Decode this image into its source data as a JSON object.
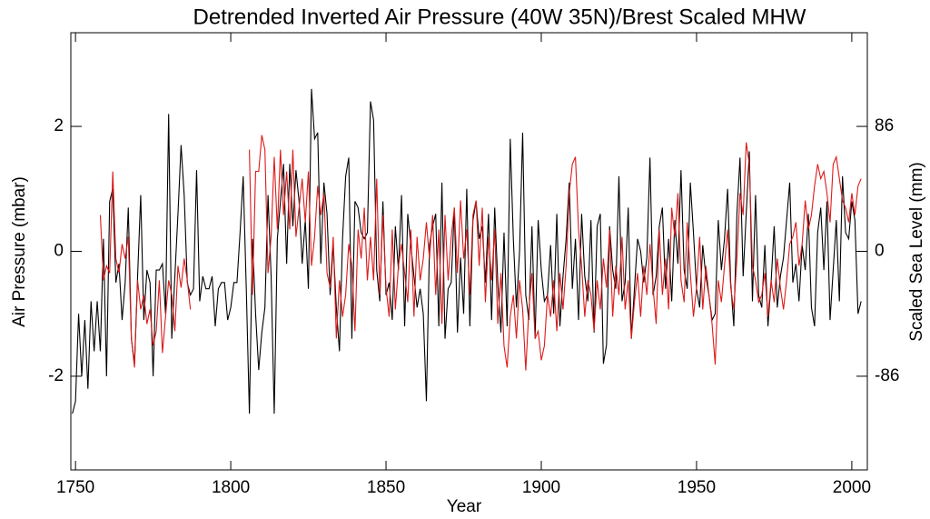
{
  "chart_data": {
    "type": "line",
    "title": "Detrended Inverted Air Pressure (40W 35N)/Brest Scaled MHW",
    "x_label": "Year",
    "y_label": "Air Pressure (mbar)",
    "y2_label": "Scaled Sea Level (mm)",
    "x": [
      1749,
      1750,
      1751,
      1752,
      1753,
      1754,
      1755,
      1756,
      1757,
      1758,
      1759,
      1760,
      1761,
      1762,
      1763,
      1764,
      1765,
      1766,
      1767,
      1768,
      1769,
      1770,
      1771,
      1772,
      1773,
      1774,
      1775,
      1776,
      1777,
      1778,
      1779,
      1780,
      1781,
      1782,
      1783,
      1784,
      1785,
      1786,
      1787,
      1788,
      1789,
      1790,
      1791,
      1792,
      1793,
      1794,
      1795,
      1796,
      1797,
      1798,
      1799,
      1800,
      1801,
      1802,
      1803,
      1804,
      1805,
      1806,
      1807,
      1808,
      1809,
      1810,
      1811,
      1812,
      1813,
      1814,
      1815,
      1816,
      1817,
      1818,
      1819,
      1820,
      1821,
      1822,
      1823,
      1824,
      1825,
      1826,
      1827,
      1828,
      1829,
      1830,
      1831,
      1832,
      1833,
      1834,
      1835,
      1836,
      1837,
      1838,
      1839,
      1840,
      1841,
      1842,
      1843,
      1844,
      1845,
      1846,
      1847,
      1848,
      1849,
      1850,
      1851,
      1852,
      1853,
      1854,
      1855,
      1856,
      1857,
      1858,
      1859,
      1860,
      1861,
      1862,
      1863,
      1864,
      1865,
      1866,
      1867,
      1868,
      1869,
      1870,
      1871,
      1872,
      1873,
      1874,
      1875,
      1876,
      1877,
      1878,
      1879,
      1880,
      1881,
      1882,
      1883,
      1884,
      1885,
      1886,
      1887,
      1888,
      1889,
      1890,
      1891,
      1892,
      1893,
      1894,
      1895,
      1896,
      1897,
      1898,
      1899,
      1900,
      1901,
      1902,
      1903,
      1904,
      1905,
      1906,
      1907,
      1908,
      1909,
      1910,
      1911,
      1912,
      1913,
      1914,
      1915,
      1916,
      1917,
      1918,
      1919,
      1920,
      1921,
      1922,
      1923,
      1924,
      1925,
      1926,
      1927,
      1928,
      1929,
      1930,
      1931,
      1932,
      1933,
      1934,
      1935,
      1936,
      1937,
      1938,
      1939,
      1940,
      1941,
      1942,
      1943,
      1944,
      1945,
      1946,
      1947,
      1948,
      1949,
      1950,
      1951,
      1952,
      1953,
      1954,
      1955,
      1956,
      1957,
      1958,
      1959,
      1960,
      1961,
      1962,
      1963,
      1964,
      1965,
      1966,
      1967,
      1968,
      1969,
      1970,
      1971,
      1972,
      1973,
      1974,
      1975,
      1976,
      1977,
      1978,
      1979,
      1980,
      1981,
      1982,
      1983,
      1984,
      1985,
      1986,
      1987,
      1988,
      1989,
      1990,
      1991,
      1992,
      1993,
      1994,
      1995,
      1996,
      1997,
      1998,
      1999,
      2000,
      2001,
      2002,
      2003
    ],
    "series": [
      {
        "name": "Detrended Inverted Air Pressure (40W 35N)",
        "color": "#000000",
        "values": [
          -2.6,
          -2.4,
          -1.0,
          -2.0,
          -1.1,
          -2.2,
          -0.8,
          -1.6,
          -0.8,
          -1.6,
          0.2,
          -2.0,
          0.8,
          1.0,
          -0.5,
          -0.2,
          -1.1,
          -0.5,
          0.7,
          -1.4,
          -1.8,
          -0.4,
          0.9,
          -1.1,
          -0.3,
          -0.5,
          -2.0,
          -0.3,
          -0.3,
          -0.2,
          -1.0,
          2.2,
          -1.4,
          -0.4,
          0.6,
          1.7,
          0.9,
          -0.5,
          -0.7,
          -0.6,
          1.3,
          -0.8,
          -0.4,
          -0.6,
          -0.6,
          -0.4,
          -1.2,
          -0.6,
          -0.5,
          -0.5,
          -1.1,
          -0.9,
          -0.5,
          -0.5,
          0.3,
          1.2,
          -0.6,
          -2.6,
          0.2,
          -1.0,
          -1.9,
          -1.3,
          -0.9,
          0.9,
          -0.4,
          -2.6,
          0.2,
          0.8,
          1.4,
          -0.2,
          1.4,
          0.4,
          1.3,
          0.8,
          -0.2,
          0.5,
          -0.6,
          2.6,
          1.8,
          1.9,
          -0.2,
          1.1,
          0.6,
          -0.7,
          0.1,
          -0.9,
          -1.6,
          0.2,
          1.2,
          1.5,
          -1.4,
          0.8,
          0.7,
          0.3,
          0.2,
          0.3,
          2.4,
          2.1,
          -0.3,
          -0.8,
          0.8,
          -0.7,
          -0.5,
          -1.1,
          0.4,
          -0.3,
          0.9,
          -1.2,
          0.6,
          0.1,
          -0.4,
          -0.9,
          -0.6,
          -1.0,
          -2.4,
          0.1,
          0.4,
          0.6,
          -1.2,
          1.1,
          -1.4,
          -0.6,
          -0.5,
          0.7,
          -1.3,
          -0.1,
          -1.0,
          1.0,
          -1.2,
          0.5,
          0.8,
          0.2,
          0.4,
          -0.5,
          0.6,
          -1.1,
          0.7,
          -0.5,
          -1.3,
          0.3,
          -1.2,
          1.8,
          0.2,
          -0.9,
          0.0,
          1.9,
          -0.7,
          -1.1,
          0.4,
          -1.4,
          0.5,
          -0.3,
          -0.8,
          -0.7,
          0.1,
          -1.0,
          0.6,
          -1.2,
          -0.4,
          0.2,
          1.1,
          -0.6,
          0.2,
          -1.1,
          0.6,
          -0.4,
          -0.8,
          0.5,
          -1.3,
          0.4,
          0.6,
          -1.8,
          -1.5,
          0.4,
          -0.3,
          -0.6,
          1.2,
          -0.8,
          -0.5,
          0.7,
          -1.4,
          -0.6,
          0.2,
          0.0,
          -0.5,
          -0.1,
          1.5,
          -0.7,
          -0.4,
          0.4,
          0.7,
          -0.6,
          0.2,
          -0.8,
          0.5,
          -0.2,
          1.3,
          -0.3,
          -0.6,
          1.1,
          0.3,
          -0.6,
          -0.9,
          0.1,
          -0.4,
          -0.7,
          -1.1,
          -1.0,
          0.5,
          -0.3,
          0.2,
          1.0,
          -0.5,
          -1.2,
          0.6,
          1.5,
          -0.4,
          0.6,
          1.6,
          -0.8,
          0.9,
          -0.7,
          -0.9,
          0.1,
          -1.2,
          -0.5,
          0.4,
          -0.9,
          -0.4,
          -0.1,
          0.5,
          1.1,
          -0.5,
          -0.2,
          -0.8,
          0.1,
          -0.3,
          0.6,
          -0.9,
          -1.2,
          0.3,
          0.7,
          -0.3,
          0.8,
          -1.1,
          -0.3,
          0.5,
          -0.8,
          1.2,
          0.3,
          0.2,
          0.8,
          0.5,
          -1.0,
          -0.8
        ]
      },
      {
        "name": "Brest Scaled MHW",
        "color": "#dd1a1a",
        "axis": "y2",
        "values": [
          null,
          null,
          null,
          null,
          null,
          null,
          null,
          null,
          null,
          25,
          -20,
          -10,
          -15,
          55,
          -5,
          -15,
          5,
          -5,
          10,
          -60,
          -80,
          -20,
          -40,
          -30,
          -50,
          -40,
          -65,
          -55,
          -20,
          -70,
          -45,
          -20,
          -30,
          -55,
          -10,
          -25,
          -5,
          -20,
          -40,
          null,
          null,
          null,
          null,
          null,
          null,
          null,
          null,
          null,
          null,
          null,
          null,
          null,
          null,
          null,
          null,
          null,
          null,
          70,
          -30,
          55,
          55,
          80,
          70,
          -15,
          10,
          65,
          15,
          70,
          25,
          55,
          15,
          70,
          10,
          30,
          50,
          20,
          55,
          -10,
          10,
          45,
          25,
          40,
          -15,
          -25,
          10,
          -60,
          -20,
          -45,
          -30,
          5,
          -10,
          -55,
          15,
          -5,
          30,
          -20,
          10,
          -20,
          50,
          -30,
          25,
          -25,
          -45,
          15,
          -40,
          -10,
          5,
          -15,
          -35,
          15,
          -45,
          10,
          -20,
          -5,
          20,
          -5,
          25,
          -30,
          15,
          -50,
          25,
          -20,
          10,
          30,
          -15,
          35,
          -5,
          15,
          -30,
          25,
          35,
          -10,
          30,
          -35,
          10,
          -20,
          15,
          -50,
          -15,
          -65,
          -80,
          -45,
          -30,
          -60,
          -20,
          -40,
          -82,
          -40,
          -15,
          -60,
          -55,
          -75,
          -65,
          -30,
          -45,
          -20,
          -55,
          -15,
          -40,
          -10,
          40,
          60,
          65,
          15,
          -10,
          -45,
          -20,
          -30,
          -55,
          -20,
          -40,
          -5,
          -25,
          15,
          -45,
          -10,
          -30,
          10,
          -40,
          -20,
          -60,
          -35,
          -15,
          -45,
          -10,
          -30,
          5,
          -25,
          -50,
          15,
          -30,
          -5,
          -40,
          30,
          10,
          40,
          -20,
          -35,
          20,
          -15,
          -45,
          -25,
          10,
          -40,
          -10,
          -30,
          -50,
          -78,
          -20,
          -35,
          -10,
          15,
          -25,
          -40,
          -5,
          40,
          25,
          75,
          60,
          -10,
          -20,
          -35,
          -30,
          -15,
          -45,
          -20,
          -35,
          -5,
          -25,
          -40,
          -20,
          5,
          10,
          20,
          -10,
          5,
          35,
          15,
          25,
          45,
          60,
          50,
          55,
          40,
          20,
          60,
          65,
          50,
          35,
          30,
          20,
          40,
          25,
          45,
          50
        ]
      }
    ],
    "xlim": [
      1748.5,
      2005
    ],
    "xticks": [
      1750,
      1800,
      1850,
      1900,
      1950,
      2000
    ],
    "ylim": [
      -3.5,
      3.5
    ],
    "yticks": [
      -2,
      0,
      2
    ],
    "y2lim": [
      -150.5,
      150.5
    ],
    "y2ticks": [
      -86,
      0,
      86
    ]
  }
}
